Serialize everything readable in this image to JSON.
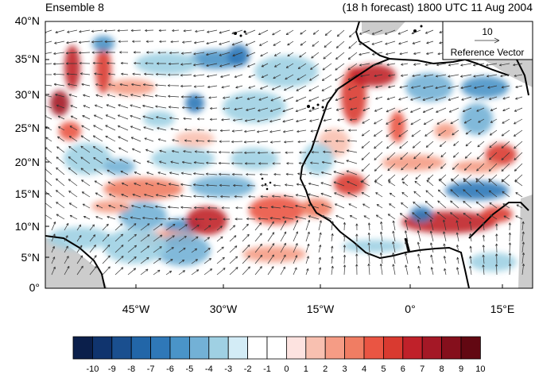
{
  "title_left": "Ensemble 8",
  "title_right": "(18 h forecast) 1800 UTC 11 Aug 2004",
  "reference_vector": {
    "magnitude": "10",
    "label": "Reference Vector"
  },
  "lat_labels": [
    "40°N",
    "35°N",
    "30°N",
    "25°N",
    "20°N",
    "15°N",
    "10°N",
    "5°N",
    "0°"
  ],
  "lon_labels": [
    "45°W",
    "30°W",
    "15°W",
    "0°",
    "15°E"
  ],
  "colorbar": {
    "labels": [
      "-10",
      "-9",
      "-8",
      "-7",
      "-6",
      "-5",
      "-4",
      "-3",
      "-2",
      "-1",
      "0",
      "1",
      "2",
      "3",
      "4",
      "5",
      "6",
      "7",
      "8",
      "9",
      "10"
    ],
    "colors": [
      "#0b1f4b",
      "#10346e",
      "#1a4f8f",
      "#2266a8",
      "#2f78b8",
      "#4a94c8",
      "#73b1d6",
      "#9fd0e3",
      "#d3ecf6",
      "#ffffff",
      "#ffffff",
      "#fde3e0",
      "#f8c0b0",
      "#f59c85",
      "#f07d63",
      "#ea5543",
      "#d93a30",
      "#c0212a",
      "#a41826",
      "#850f1c",
      "#620812"
    ]
  },
  "colors": {
    "land_mask": "#cccccc",
    "coast": "#000000",
    "vector": "#333333"
  }
}
